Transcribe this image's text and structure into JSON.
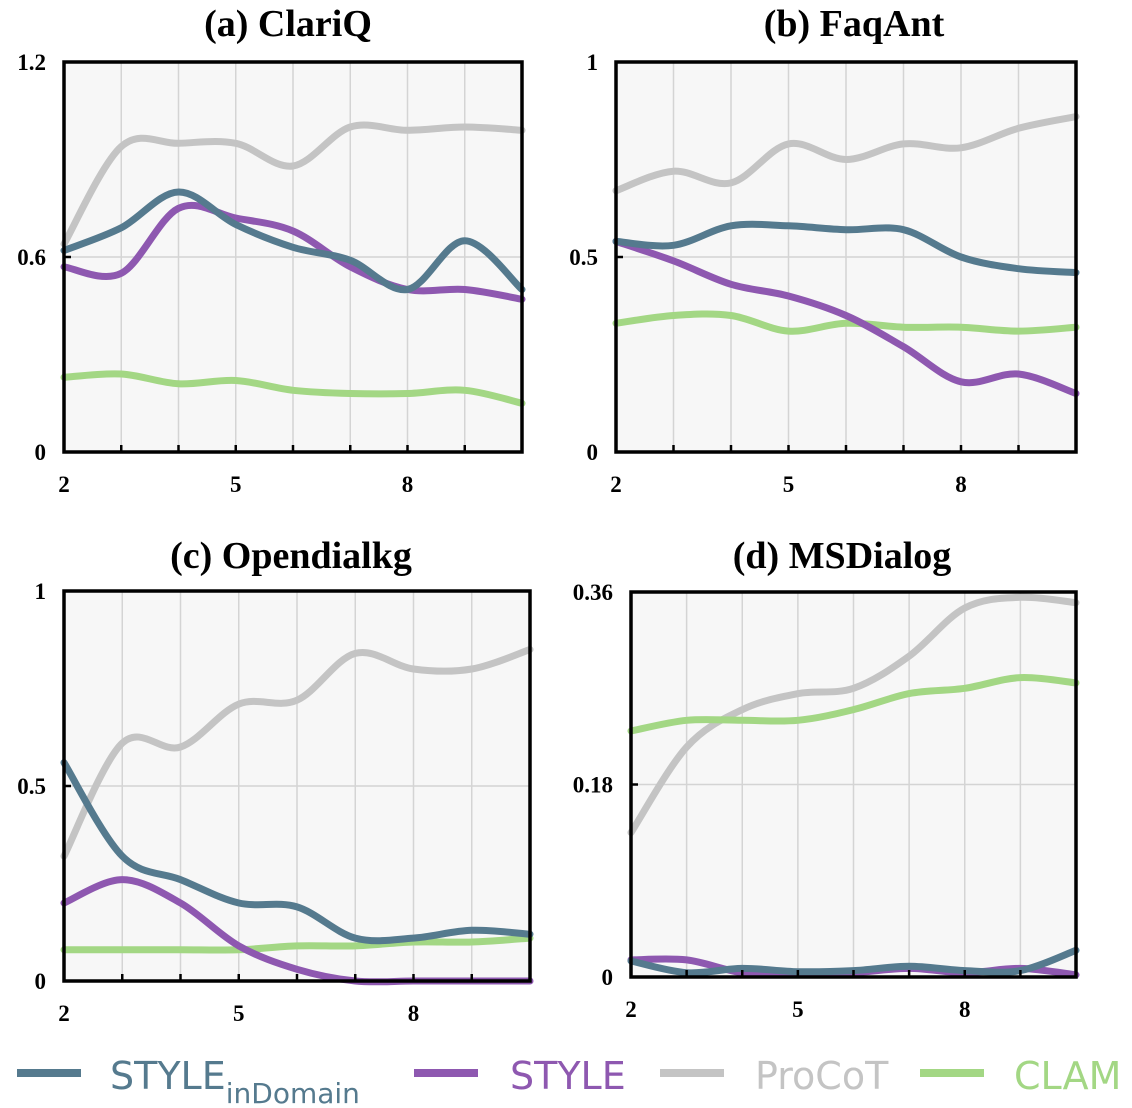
{
  "colors": {
    "style_indomain": "#557a8e",
    "style": "#8e58b0",
    "procot": "#c4c4c4",
    "clam": "#a3d784",
    "plot_bg": "#f7f7f7",
    "grid": "#d4d4d4"
  },
  "legend": [
    {
      "key": "style_indomain",
      "label": "STYLE",
      "sub": "inDomain"
    },
    {
      "key": "style",
      "label": "STYLE",
      "sub": ""
    },
    {
      "key": "procot",
      "label": "ProCoT",
      "sub": ""
    },
    {
      "key": "clam",
      "label": "CLAM",
      "sub": ""
    }
  ],
  "chart_data": [
    {
      "type": "line",
      "title": "(a) ClariQ",
      "x": [
        2,
        3,
        4,
        5,
        6,
        7,
        8,
        9,
        10
      ],
      "xticks": [
        2,
        5,
        8
      ],
      "xlim": [
        2,
        10
      ],
      "ylim": [
        0,
        1.2
      ],
      "yticks": [
        0,
        0.6,
        1.2
      ],
      "ytick_labels": [
        "0",
        "0.6",
        "1.2"
      ],
      "series": [
        {
          "key": "procot",
          "name": "ProCoT",
          "values": [
            0.64,
            0.94,
            0.95,
            0.95,
            0.88,
            1.0,
            0.99,
            1.0,
            0.99
          ]
        },
        {
          "key": "clam",
          "name": "CLAM",
          "values": [
            0.23,
            0.24,
            0.21,
            0.22,
            0.19,
            0.18,
            0.18,
            0.19,
            0.15
          ]
        },
        {
          "key": "style",
          "name": "STYLE",
          "values": [
            0.57,
            0.55,
            0.75,
            0.72,
            0.68,
            0.57,
            0.5,
            0.5,
            0.47
          ]
        },
        {
          "key": "style_indomain",
          "name": "STYLEinDomain",
          "values": [
            0.62,
            0.69,
            0.8,
            0.7,
            0.63,
            0.59,
            0.5,
            0.65,
            0.5
          ]
        }
      ]
    },
    {
      "type": "line",
      "title": "(b) FaqAnt",
      "x": [
        2,
        3,
        4,
        5,
        6,
        7,
        8,
        9,
        10
      ],
      "xticks": [
        2,
        5,
        8
      ],
      "xlim": [
        2,
        10
      ],
      "ylim": [
        0,
        1
      ],
      "yticks": [
        0,
        0.5,
        1
      ],
      "ytick_labels": [
        "0",
        "0.5",
        "1"
      ],
      "series": [
        {
          "key": "procot",
          "name": "ProCoT",
          "values": [
            0.67,
            0.72,
            0.69,
            0.79,
            0.75,
            0.79,
            0.78,
            0.83,
            0.86
          ]
        },
        {
          "key": "clam",
          "name": "CLAM",
          "values": [
            0.33,
            0.35,
            0.35,
            0.31,
            0.33,
            0.32,
            0.32,
            0.31,
            0.32
          ]
        },
        {
          "key": "style",
          "name": "STYLE",
          "values": [
            0.54,
            0.49,
            0.43,
            0.4,
            0.35,
            0.27,
            0.18,
            0.2,
            0.15
          ]
        },
        {
          "key": "style_indomain",
          "name": "STYLEinDomain",
          "values": [
            0.54,
            0.53,
            0.58,
            0.58,
            0.57,
            0.57,
            0.5,
            0.47,
            0.46
          ]
        }
      ]
    },
    {
      "type": "line",
      "title": "(c) Opendialkg",
      "x": [
        2,
        3,
        4,
        5,
        6,
        7,
        8,
        9,
        10
      ],
      "xticks": [
        2,
        5,
        8
      ],
      "xlim": [
        2,
        10
      ],
      "ylim": [
        0,
        1
      ],
      "yticks": [
        0,
        0.5,
        1
      ],
      "ytick_labels": [
        "0",
        "0.5",
        "1"
      ],
      "series": [
        {
          "key": "procot",
          "name": "ProCoT",
          "values": [
            0.32,
            0.61,
            0.6,
            0.71,
            0.72,
            0.84,
            0.8,
            0.8,
            0.85
          ]
        },
        {
          "key": "clam",
          "name": "CLAM",
          "values": [
            0.08,
            0.08,
            0.08,
            0.08,
            0.09,
            0.09,
            0.1,
            0.1,
            0.11
          ]
        },
        {
          "key": "style",
          "name": "STYLE",
          "values": [
            0.2,
            0.26,
            0.2,
            0.09,
            0.03,
            0.0,
            0.0,
            0.0,
            0.0
          ]
        },
        {
          "key": "style_indomain",
          "name": "STYLEinDomain",
          "values": [
            0.56,
            0.32,
            0.26,
            0.2,
            0.19,
            0.11,
            0.11,
            0.13,
            0.12
          ]
        }
      ]
    },
    {
      "type": "line",
      "title": "(d) MSDialog",
      "x": [
        2,
        3,
        4,
        5,
        6,
        7,
        8,
        9,
        10
      ],
      "xticks": [
        2,
        5,
        8
      ],
      "xlim": [
        2,
        10
      ],
      "ylim": [
        0,
        0.36
      ],
      "yticks": [
        0,
        0.18,
        0.36
      ],
      "ytick_labels": [
        "0",
        "0.18",
        "0.36"
      ],
      "series": [
        {
          "key": "procot",
          "name": "ProCoT",
          "values": [
            0.135,
            0.215,
            0.25,
            0.265,
            0.27,
            0.3,
            0.345,
            0.355,
            0.35
          ]
        },
        {
          "key": "clam",
          "name": "CLAM",
          "values": [
            0.23,
            0.24,
            0.24,
            0.24,
            0.25,
            0.265,
            0.27,
            0.28,
            0.275
          ]
        },
        {
          "key": "style",
          "name": "STYLE",
          "values": [
            0.016,
            0.016,
            0.004,
            0.003,
            0.004,
            0.008,
            0.004,
            0.008,
            0.002
          ]
        },
        {
          "key": "style_indomain",
          "name": "STYLEinDomain",
          "values": [
            0.015,
            0.004,
            0.008,
            0.005,
            0.006,
            0.01,
            0.006,
            0.006,
            0.025
          ]
        }
      ]
    }
  ]
}
